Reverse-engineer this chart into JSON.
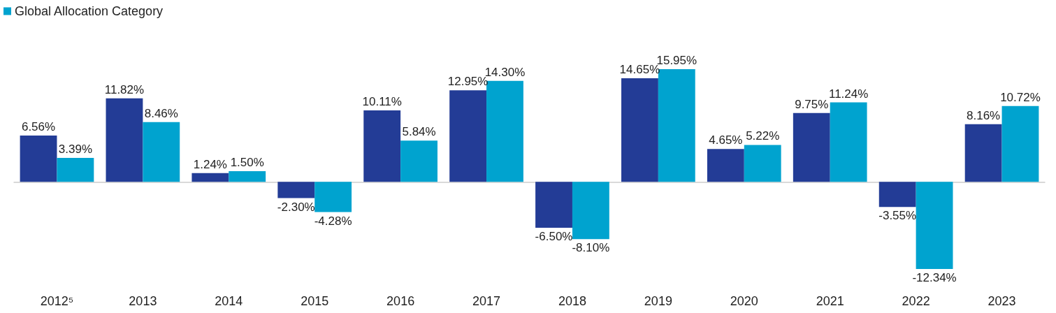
{
  "chart_data": {
    "type": "bar",
    "categories": [
      "2012⁵",
      "2013",
      "2014",
      "2015",
      "2016",
      "2017",
      "2018",
      "2019",
      "2020",
      "2021",
      "2022",
      "2023"
    ],
    "series": [
      {
        "color": "#233c96",
        "values": [
          6.56,
          11.82,
          1.24,
          -2.3,
          10.11,
          12.95,
          -6.5,
          14.65,
          4.65,
          9.75,
          -3.55,
          8.16
        ],
        "value_labels": [
          "6.56%",
          "11.82%",
          "1.24%",
          "-2.30%",
          "10.11%",
          "12.95%",
          "-6.50%",
          "14.65%",
          "4.65%",
          "9.75%",
          "-3.55%",
          "8.16%"
        ]
      },
      {
        "name": "Global Allocation Category",
        "color": "#00a3cf",
        "values": [
          3.39,
          8.46,
          1.5,
          -4.28,
          5.84,
          14.3,
          -8.1,
          15.95,
          5.22,
          11.24,
          -12.34,
          10.72
        ],
        "value_labels": [
          "3.39%",
          "8.46%",
          "1.50%",
          "-4.28%",
          "5.84%",
          "14.30%",
          "-8.10%",
          "15.95%",
          "5.22%",
          "11.24%",
          "-12.34%",
          "10.72%"
        ]
      }
    ],
    "legend": "top left",
    "tick_labels": "x"
  }
}
